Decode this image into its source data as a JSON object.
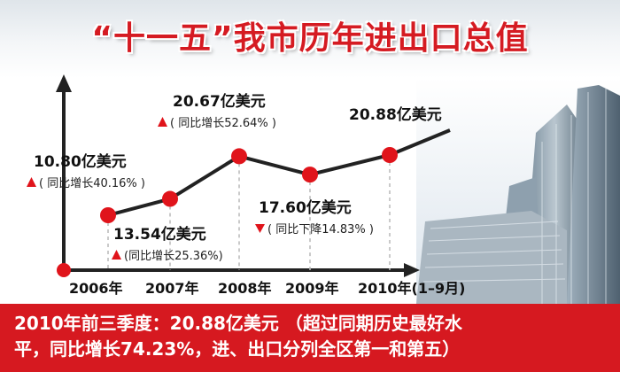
{
  "title": "“十一五”我市历年进出口总值",
  "chart_data": {
    "type": "line",
    "categories": [
      "2006年",
      "2007年",
      "2008年",
      "2009年",
      "2010年(1–9月)"
    ],
    "values": [
      10.8,
      13.54,
      20.67,
      17.6,
      20.88
    ],
    "unit": "亿美元",
    "value_labels": [
      "10.80亿美元",
      "13.54亿美元",
      "20.67亿美元",
      "17.60亿美元",
      "20.88亿美元"
    ],
    "growth_labels": [
      "( 同比增长40.16% )",
      "(同比增长25.36%)",
      "( 同比增长52.64% )",
      "( 同比下降14.83% )",
      ""
    ],
    "growth_direction": [
      "up",
      "up",
      "up",
      "down",
      ""
    ],
    "ylim": [
      0,
      30
    ],
    "line_color": "#222222",
    "marker_color": "#e0141b",
    "up_color": "#e0141b",
    "down_color": "#e0141b"
  },
  "footer": {
    "line1": "2010年前三季度：20.88亿美元 （超过同期历史最好水",
    "line2": "平，同比增长74.23%，进、出口分列全区第一和第五）"
  },
  "colors": {
    "title": "#d51b22",
    "band": "#d61920"
  }
}
